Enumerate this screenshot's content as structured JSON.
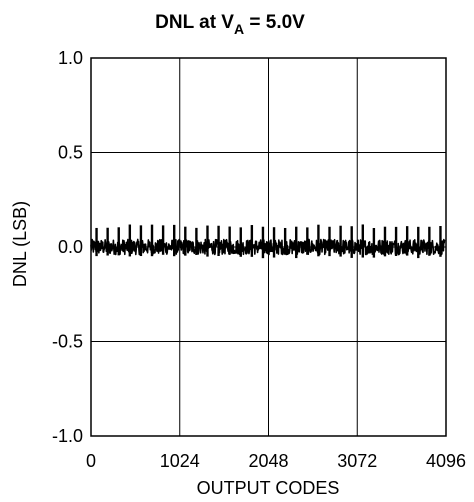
{
  "chart_data": {
    "type": "line",
    "title": {
      "prefix": "DNL at V",
      "subscript": "A",
      "suffix": " = 5.0V"
    },
    "xlabel": "OUTPUT CODES",
    "ylabel": "DNL (LSB)",
    "xlim": [
      0,
      4096
    ],
    "ylim": [
      -1.0,
      1.0
    ],
    "x_ticks": [
      0,
      1024,
      2048,
      3072,
      4096
    ],
    "x_tick_labels": [
      "0",
      "1024",
      "2048",
      "3072",
      "4096"
    ],
    "y_ticks": [
      1.0,
      0.5,
      0.0,
      -0.5,
      -1.0
    ],
    "y_tick_labels": [
      "1.0",
      "0.5",
      "0.0",
      "-0.5",
      "-1.0"
    ],
    "grid": true,
    "series": [
      {
        "line_color": "#000000",
        "band": {
          "upper": 0.04,
          "lower": -0.04
        },
        "spike_period_codes": 128,
        "spike_high": 0.12,
        "spike_low": -0.06
      }
    ]
  }
}
